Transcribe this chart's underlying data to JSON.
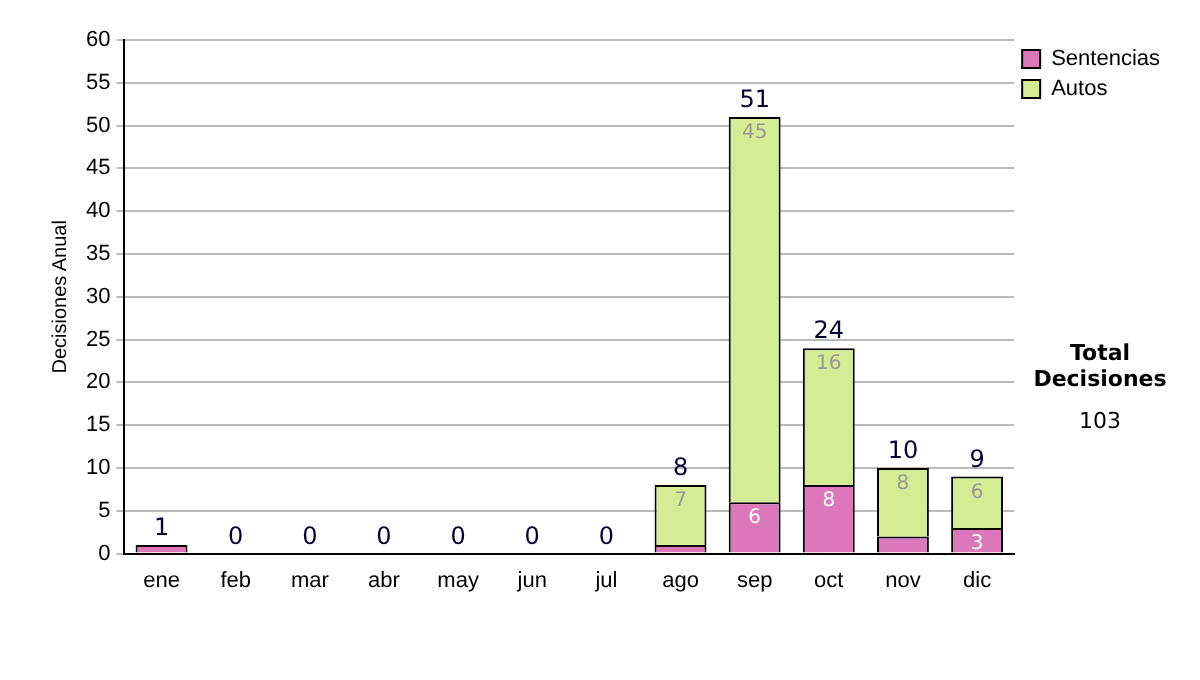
{
  "chart_data": {
    "type": "bar",
    "stacked": true,
    "ylabel": "Decisiones Anual",
    "categories": [
      "ene",
      "feb",
      "mar",
      "abr",
      "may",
      "jun",
      "jul",
      "ago",
      "sep",
      "oct",
      "nov",
      "dic"
    ],
    "series": [
      {
        "name": "Sentencias",
        "color": "#dd77bb",
        "values": [
          1,
          0,
          0,
          0,
          0,
          0,
          0,
          1,
          6,
          8,
          2,
          3
        ],
        "value_labels": [
          null,
          null,
          null,
          null,
          null,
          null,
          null,
          null,
          "6",
          "8",
          null,
          "3"
        ]
      },
      {
        "name": "Autos",
        "color": "#d4ec94",
        "values": [
          0,
          0,
          0,
          0,
          0,
          0,
          0,
          7,
          45,
          16,
          8,
          6
        ],
        "value_labels": [
          null,
          null,
          null,
          null,
          null,
          null,
          null,
          "7",
          "45",
          "16",
          "8",
          "6"
        ]
      }
    ],
    "totals": [
      "1",
      "0",
      "0",
      "0",
      "0",
      "0",
      "0",
      "8",
      "51",
      "24",
      "10",
      "9"
    ],
    "ylim": [
      0,
      60
    ],
    "yticks": [
      0,
      5,
      10,
      15,
      20,
      25,
      30,
      35,
      40,
      45,
      50,
      55,
      60
    ],
    "grid": "y",
    "legend": "right",
    "annotations": [
      "Total Decisiones",
      "103"
    ]
  }
}
